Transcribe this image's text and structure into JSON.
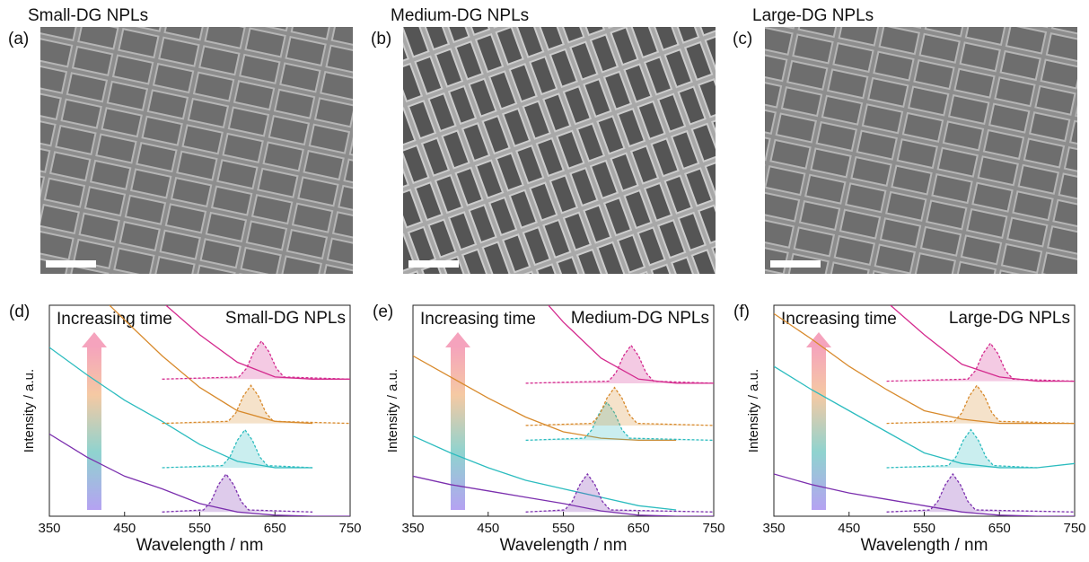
{
  "panels": [
    {
      "label": "(a)",
      "title": "Small-DG NPLs"
    },
    {
      "label": "(b)",
      "title": "Medium-DG NPLs"
    },
    {
      "label": "(c)",
      "title": "Large-DG NPLs"
    }
  ],
  "chart_data": [
    {
      "type": "line",
      "label": "(d)",
      "title": "Small-DG NPLs",
      "annotation": "Increasing time",
      "x_label": "Wavelength / nm",
      "y_label": "Intensity / a.u.",
      "xlim": [
        350,
        750
      ],
      "xticks": [
        350,
        450,
        550,
        650,
        750
      ],
      "ylim": [
        0,
        10
      ],
      "series": [
        {
          "color": "#7b2fae",
          "x": [
            350,
            400,
            450,
            500,
            550,
            600,
            650,
            700,
            750
          ],
          "values": [
            3.9,
            2.8,
            1.9,
            1.3,
            0.6,
            0.2,
            0.05,
            0,
            0
          ]
        },
        {
          "color": "#2cbcbf",
          "x": [
            350,
            400,
            450,
            500,
            550,
            600,
            650,
            700
          ],
          "values": [
            8.0,
            6.7,
            5.5,
            4.5,
            3.4,
            2.6,
            2.3,
            2.3
          ]
        },
        {
          "color": "#d88a2c",
          "x": [
            430,
            450,
            500,
            550,
            600,
            650,
            700
          ],
          "values": [
            10,
            9.3,
            7.6,
            6.1,
            5.0,
            4.5,
            4.4
          ]
        },
        {
          "color": "#d42a8e",
          "x": [
            505,
            550,
            600,
            650,
            700,
            750
          ],
          "values": [
            10,
            8.6,
            7.3,
            6.6,
            6.5,
            6.5
          ]
        },
        {
          "color": "#7b2fae",
          "dashed": true,
          "x": [
            500,
            555,
            565,
            575,
            585,
            595,
            605,
            615,
            700
          ],
          "values": [
            0.2,
            0.3,
            0.7,
            1.5,
            2.0,
            1.5,
            0.7,
            0.3,
            0.2
          ]
        },
        {
          "color": "#2cbcbf",
          "dashed": true,
          "x": [
            500,
            580,
            590,
            600,
            610,
            620,
            630,
            640,
            700
          ],
          "values": [
            2.3,
            2.4,
            2.8,
            3.6,
            4.1,
            3.6,
            2.8,
            2.4,
            2.3
          ]
        },
        {
          "color": "#d88a2c",
          "dashed": true,
          "x": [
            500,
            588,
            598,
            608,
            618,
            628,
            638,
            648,
            750
          ],
          "values": [
            4.4,
            4.5,
            4.9,
            5.7,
            6.2,
            5.7,
            4.9,
            4.5,
            4.4
          ]
        },
        {
          "color": "#d42a8e",
          "dashed": true,
          "x": [
            500,
            602,
            612,
            622,
            632,
            642,
            652,
            662,
            750
          ],
          "values": [
            6.5,
            6.6,
            7.0,
            7.8,
            8.3,
            7.8,
            7.0,
            6.6,
            6.5
          ]
        }
      ]
    },
    {
      "type": "line",
      "label": "(e)",
      "title": "Medium-DG NPLs",
      "annotation": "Increasing time",
      "x_label": "Wavelength / nm",
      "y_label": "Intensity / a.u.",
      "xlim": [
        350,
        750
      ],
      "xticks": [
        350,
        450,
        550,
        650,
        750
      ],
      "ylim": [
        0,
        10
      ],
      "series": [
        {
          "color": "#7b2fae",
          "x": [
            350,
            400,
            450,
            500,
            550,
            600,
            650,
            700,
            750
          ],
          "values": [
            1.9,
            1.5,
            1.2,
            0.9,
            0.6,
            0.25,
            0.05,
            0,
            0
          ]
        },
        {
          "color": "#2cbcbf",
          "x": [
            350,
            400,
            450,
            500,
            550,
            600,
            650,
            700
          ],
          "values": [
            3.8,
            3.0,
            2.3,
            1.7,
            1.3,
            0.9,
            0.5,
            0.3
          ]
        },
        {
          "color": "#d88a2c",
          "x": [
            350,
            400,
            450,
            500,
            550,
            600,
            650,
            700
          ],
          "values": [
            7.6,
            6.6,
            5.6,
            4.7,
            4.0,
            3.7,
            3.6,
            3.6
          ]
        },
        {
          "color": "#d42a8e",
          "x": [
            530,
            550,
            600,
            650,
            700,
            750
          ],
          "values": [
            10,
            9.2,
            7.5,
            6.5,
            6.3,
            6.3
          ]
        },
        {
          "color": "#7b2fae",
          "dashed": true,
          "x": [
            500,
            552,
            562,
            572,
            582,
            592,
            602,
            612,
            750
          ],
          "values": [
            0.2,
            0.3,
            0.7,
            1.5,
            2.0,
            1.5,
            0.7,
            0.3,
            0.2
          ]
        },
        {
          "color": "#2cbcbf",
          "dashed": true,
          "x": [
            500,
            578,
            588,
            598,
            608,
            618,
            628,
            638,
            750
          ],
          "values": [
            3.6,
            3.7,
            4.1,
            4.9,
            5.4,
            4.9,
            4.1,
            3.7,
            3.6
          ]
        },
        {
          "color": "#d88a2c",
          "dashed": true,
          "x": [
            500,
            588,
            598,
            608,
            618,
            628,
            638,
            648,
            750
          ],
          "values": [
            4.3,
            4.4,
            4.8,
            5.6,
            6.1,
            5.6,
            4.8,
            4.4,
            4.3
          ]
        },
        {
          "color": "#d42a8e",
          "dashed": true,
          "x": [
            500,
            610,
            620,
            630,
            640,
            650,
            660,
            670,
            750
          ],
          "values": [
            6.3,
            6.4,
            6.8,
            7.6,
            8.1,
            7.6,
            6.8,
            6.4,
            6.3
          ]
        }
      ]
    },
    {
      "type": "line",
      "label": "(f)",
      "title": "Large-DG NPLs",
      "annotation": "Increasing time",
      "x_label": "Wavelength / nm",
      "y_label": "Intensity / a.u.",
      "xlim": [
        350,
        750
      ],
      "xticks": [
        350,
        450,
        550,
        650,
        750
      ],
      "ylim": [
        0,
        10
      ],
      "series": [
        {
          "color": "#7b2fae",
          "x": [
            350,
            400,
            450,
            500,
            550,
            600,
            650,
            700,
            750
          ],
          "values": [
            2.0,
            1.5,
            1.1,
            0.8,
            0.5,
            0.2,
            0.05,
            0,
            0
          ]
        },
        {
          "color": "#2cbcbf",
          "x": [
            350,
            400,
            450,
            500,
            550,
            600,
            650,
            700,
            750
          ],
          "values": [
            7.1,
            6.0,
            5.0,
            4.0,
            3.0,
            2.5,
            2.3,
            2.3,
            2.5
          ]
        },
        {
          "color": "#d88a2c",
          "x": [
            350,
            400,
            450,
            500,
            550,
            600,
            650,
            700,
            750
          ],
          "values": [
            9.6,
            8.4,
            7.1,
            6.0,
            5.0,
            4.6,
            4.4,
            4.4,
            4.4
          ]
        },
        {
          "color": "#d42a8e",
          "x": [
            505,
            550,
            600,
            650,
            700,
            750
          ],
          "values": [
            10,
            8.6,
            7.2,
            6.6,
            6.4,
            6.4
          ]
        },
        {
          "color": "#7b2fae",
          "dashed": true,
          "x": [
            500,
            558,
            568,
            578,
            588,
            598,
            608,
            618,
            750
          ],
          "values": [
            0.2,
            0.3,
            0.7,
            1.5,
            2.0,
            1.5,
            0.7,
            0.3,
            0.2
          ]
        },
        {
          "color": "#2cbcbf",
          "dashed": true,
          "x": [
            500,
            582,
            592,
            602,
            612,
            622,
            632,
            642,
            700
          ],
          "values": [
            2.3,
            2.4,
            2.8,
            3.6,
            4.1,
            3.6,
            2.8,
            2.4,
            2.3
          ]
        },
        {
          "color": "#d88a2c",
          "dashed": true,
          "x": [
            500,
            590,
            600,
            610,
            620,
            630,
            640,
            650,
            750
          ],
          "values": [
            4.4,
            4.5,
            4.9,
            5.7,
            6.2,
            5.7,
            4.9,
            4.5,
            4.4
          ]
        },
        {
          "color": "#d42a8e",
          "dashed": true,
          "x": [
            500,
            608,
            618,
            628,
            638,
            648,
            658,
            668,
            750
          ],
          "values": [
            6.4,
            6.5,
            6.9,
            7.7,
            8.2,
            7.7,
            6.9,
            6.5,
            6.4
          ]
        }
      ]
    }
  ]
}
